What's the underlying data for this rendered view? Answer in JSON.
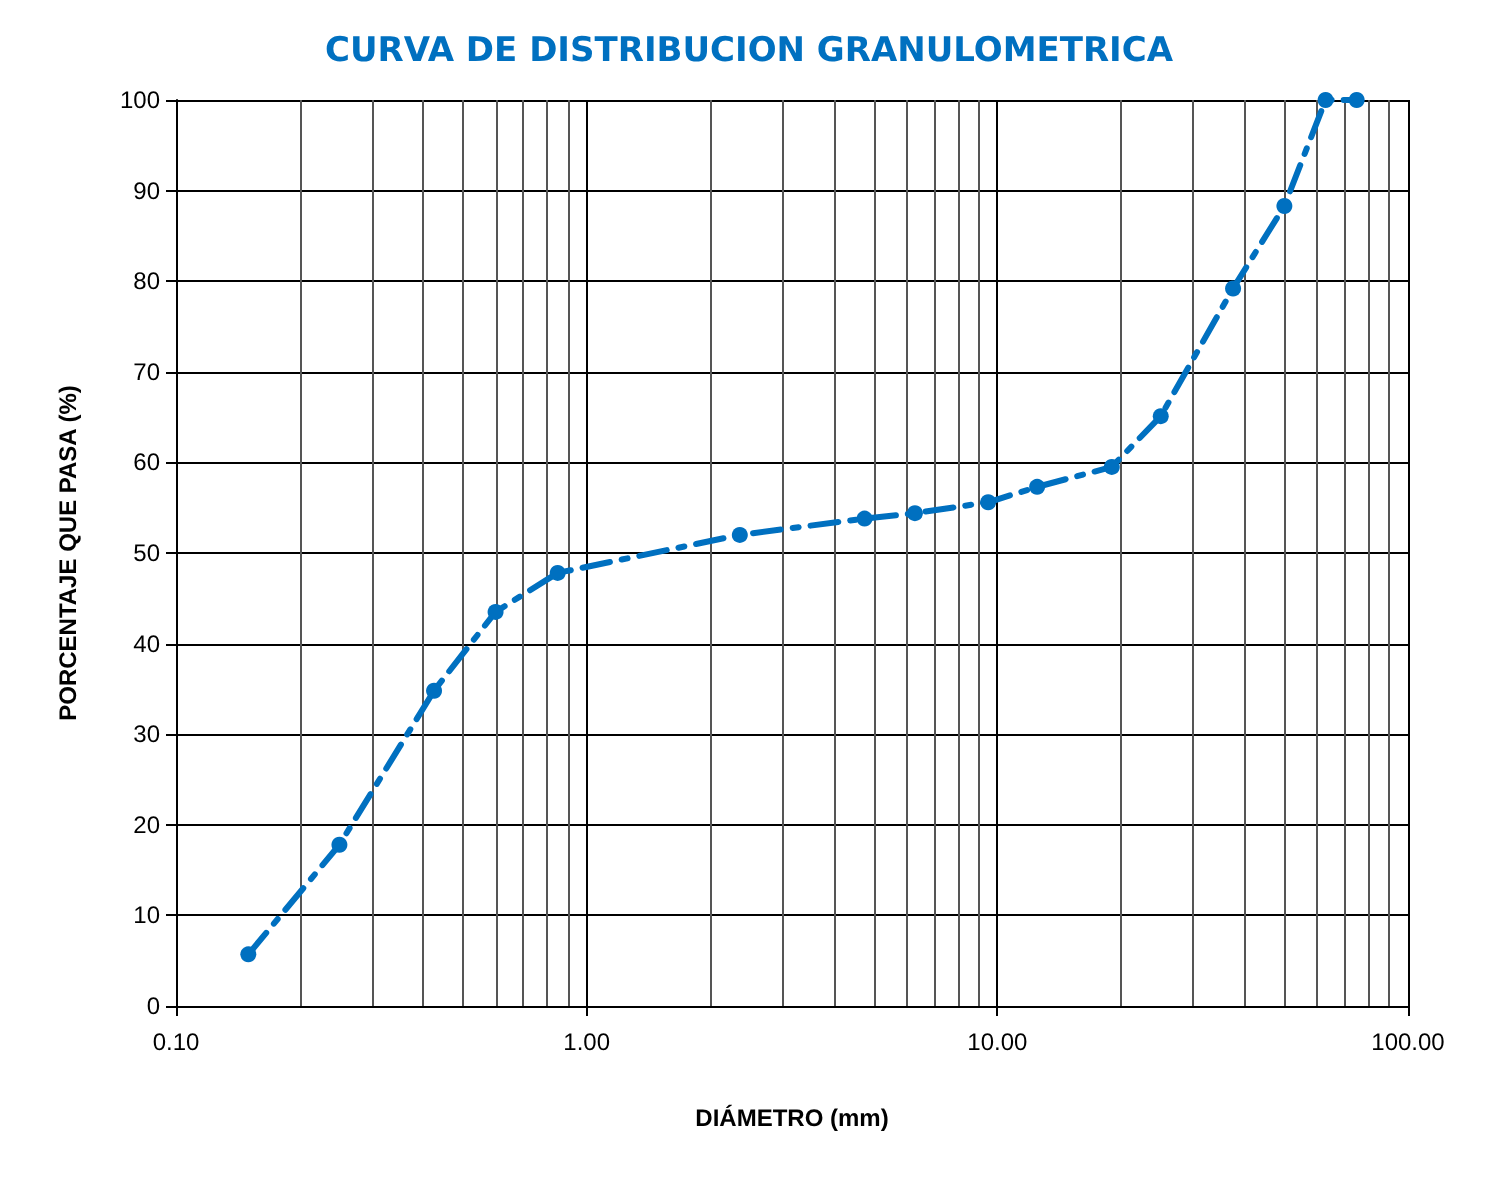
{
  "chart_data": {
    "type": "line",
    "title": "CURVA DE DISTRIBUCION GRANULOMETRICA",
    "xlabel": "DIÁMETRO (mm)",
    "ylabel": "PORCENTAJE QUE PASA (%)",
    "x": [
      0.15,
      0.25,
      0.425,
      0.6,
      0.85,
      2.36,
      4.75,
      6.3,
      9.5,
      12.5,
      19,
      25,
      37.5,
      50,
      63,
      75
    ],
    "series": [
      {
        "color": "#0070c0",
        "values": [
          5.7,
          17.8,
          34.8,
          43.5,
          47.8,
          52,
          53.8,
          54.4,
          55.6,
          57.3,
          59.5,
          65.1,
          79.2,
          88.3,
          100,
          100
        ]
      }
    ],
    "log": "x",
    "xlim": [
      0.1,
      100
    ],
    "xticks": [
      {
        "value": 0.1,
        "label": "0.10"
      },
      {
        "value": 1,
        "label": "1.00"
      },
      {
        "value": 10,
        "label": "10.00"
      },
      {
        "value": 100,
        "label": "100.00"
      }
    ],
    "ylim": [
      0,
      100
    ],
    "yticks": [
      0,
      10,
      20,
      30,
      40,
      50,
      60,
      70,
      80,
      90,
      100
    ],
    "grid": true,
    "marker": "circle",
    "line_style": "dashed"
  }
}
